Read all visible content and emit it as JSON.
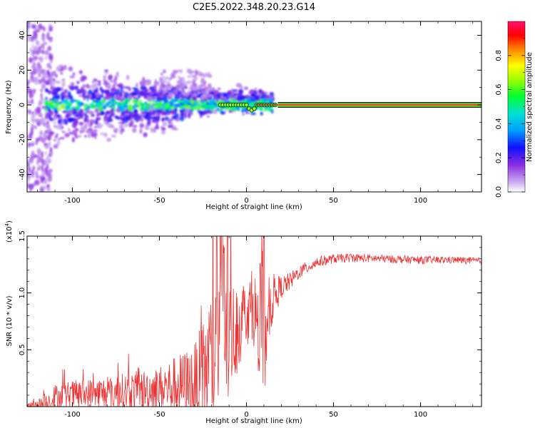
{
  "chart_data": [
    {
      "type": "heatmap",
      "title": "C2E5.2022.348.20.23.G14",
      "xlabel": "Height of straight line (km)",
      "ylabel": "Frequency (Hz)",
      "xlim": [
        -126,
        135
      ],
      "ylim": [
        -50,
        48
      ],
      "x_ticks": [
        -100,
        -50,
        0,
        50,
        100
      ],
      "x_tick_labels": [
        "-100",
        "-50",
        "0",
        "50",
        "100"
      ],
      "y_ticks": [
        -40,
        -20,
        0,
        20,
        40
      ],
      "y_tick_labels": [
        "-40",
        "-20",
        "0",
        "20",
        "40"
      ],
      "colorbar": {
        "label": "Normalized spectral amplitude",
        "range": [
          0.0,
          1.0
        ],
        "ticks": [
          0.0,
          0.2,
          0.4,
          0.6,
          0.8
        ],
        "tick_labels": [
          "0.0",
          "0.2",
          "0.4",
          "0.6",
          "0.8"
        ],
        "colormap": "rainbow"
      },
      "features": {
        "noise_start_km": -126,
        "coherent_line_start_km": 18,
        "carrier_frequency_hz": 0,
        "max_spread_hz": 20
      }
    },
    {
      "type": "line",
      "title": "",
      "xlabel": "Height of straight line (km)",
      "ylabel": "SNR (10 * v/v)",
      "y_scale_label": "(x10^4)",
      "y_scale_text": "(x10",
      "y_scale_exp": "4",
      "xlim": [
        -126,
        135
      ],
      "ylim": [
        0,
        1.5
      ],
      "x_ticks": [
        -100,
        -50,
        0,
        50,
        100
      ],
      "x_tick_labels": [
        "-100",
        "-50",
        "0",
        "50",
        "100"
      ],
      "y_ticks": [
        0.5,
        1.0,
        1.5
      ],
      "y_tick_labels": [
        "0.5",
        "1.0",
        "1.5"
      ],
      "series": [
        {
          "name": "SNR",
          "color": "#ee3333",
          "x": [
            -126,
            -120,
            -115,
            -110,
            -100,
            -90,
            -80,
            -70,
            -60,
            -50,
            -40,
            -30,
            -25,
            -20,
            -15,
            -12,
            -10,
            -5,
            0,
            5,
            8,
            10,
            12,
            15,
            20,
            25,
            30,
            40,
            50,
            60,
            80,
            100,
            120,
            135
          ],
          "y": [
            0.0,
            0.01,
            0.03,
            0.08,
            0.1,
            0.11,
            0.12,
            0.13,
            0.14,
            0.16,
            0.18,
            0.2,
            0.25,
            0.45,
            0.5,
            0.55,
            0.6,
            0.7,
            0.85,
            0.85,
            0.5,
            0.3,
            0.8,
            0.95,
            1.05,
            1.1,
            1.18,
            1.27,
            1.3,
            1.31,
            1.3,
            1.29,
            1.29,
            1.28
          ]
        }
      ],
      "noise": {
        "amplitude": [
          [
            -126,
            0.02
          ],
          [
            -110,
            0.12
          ],
          [
            -80,
            0.15
          ],
          [
            -50,
            0.2
          ],
          [
            -30,
            0.35
          ],
          [
            -20,
            0.65
          ],
          [
            -10,
            0.5
          ],
          [
            0,
            0.3
          ],
          [
            10,
            0.35
          ],
          [
            20,
            0.1
          ],
          [
            30,
            0.06
          ],
          [
            50,
            0.04
          ],
          [
            135,
            0.03
          ]
        ],
        "spikes_km": [
          -17,
          -15,
          -14,
          -13,
          -11,
          8,
          9,
          10
        ]
      }
    }
  ]
}
